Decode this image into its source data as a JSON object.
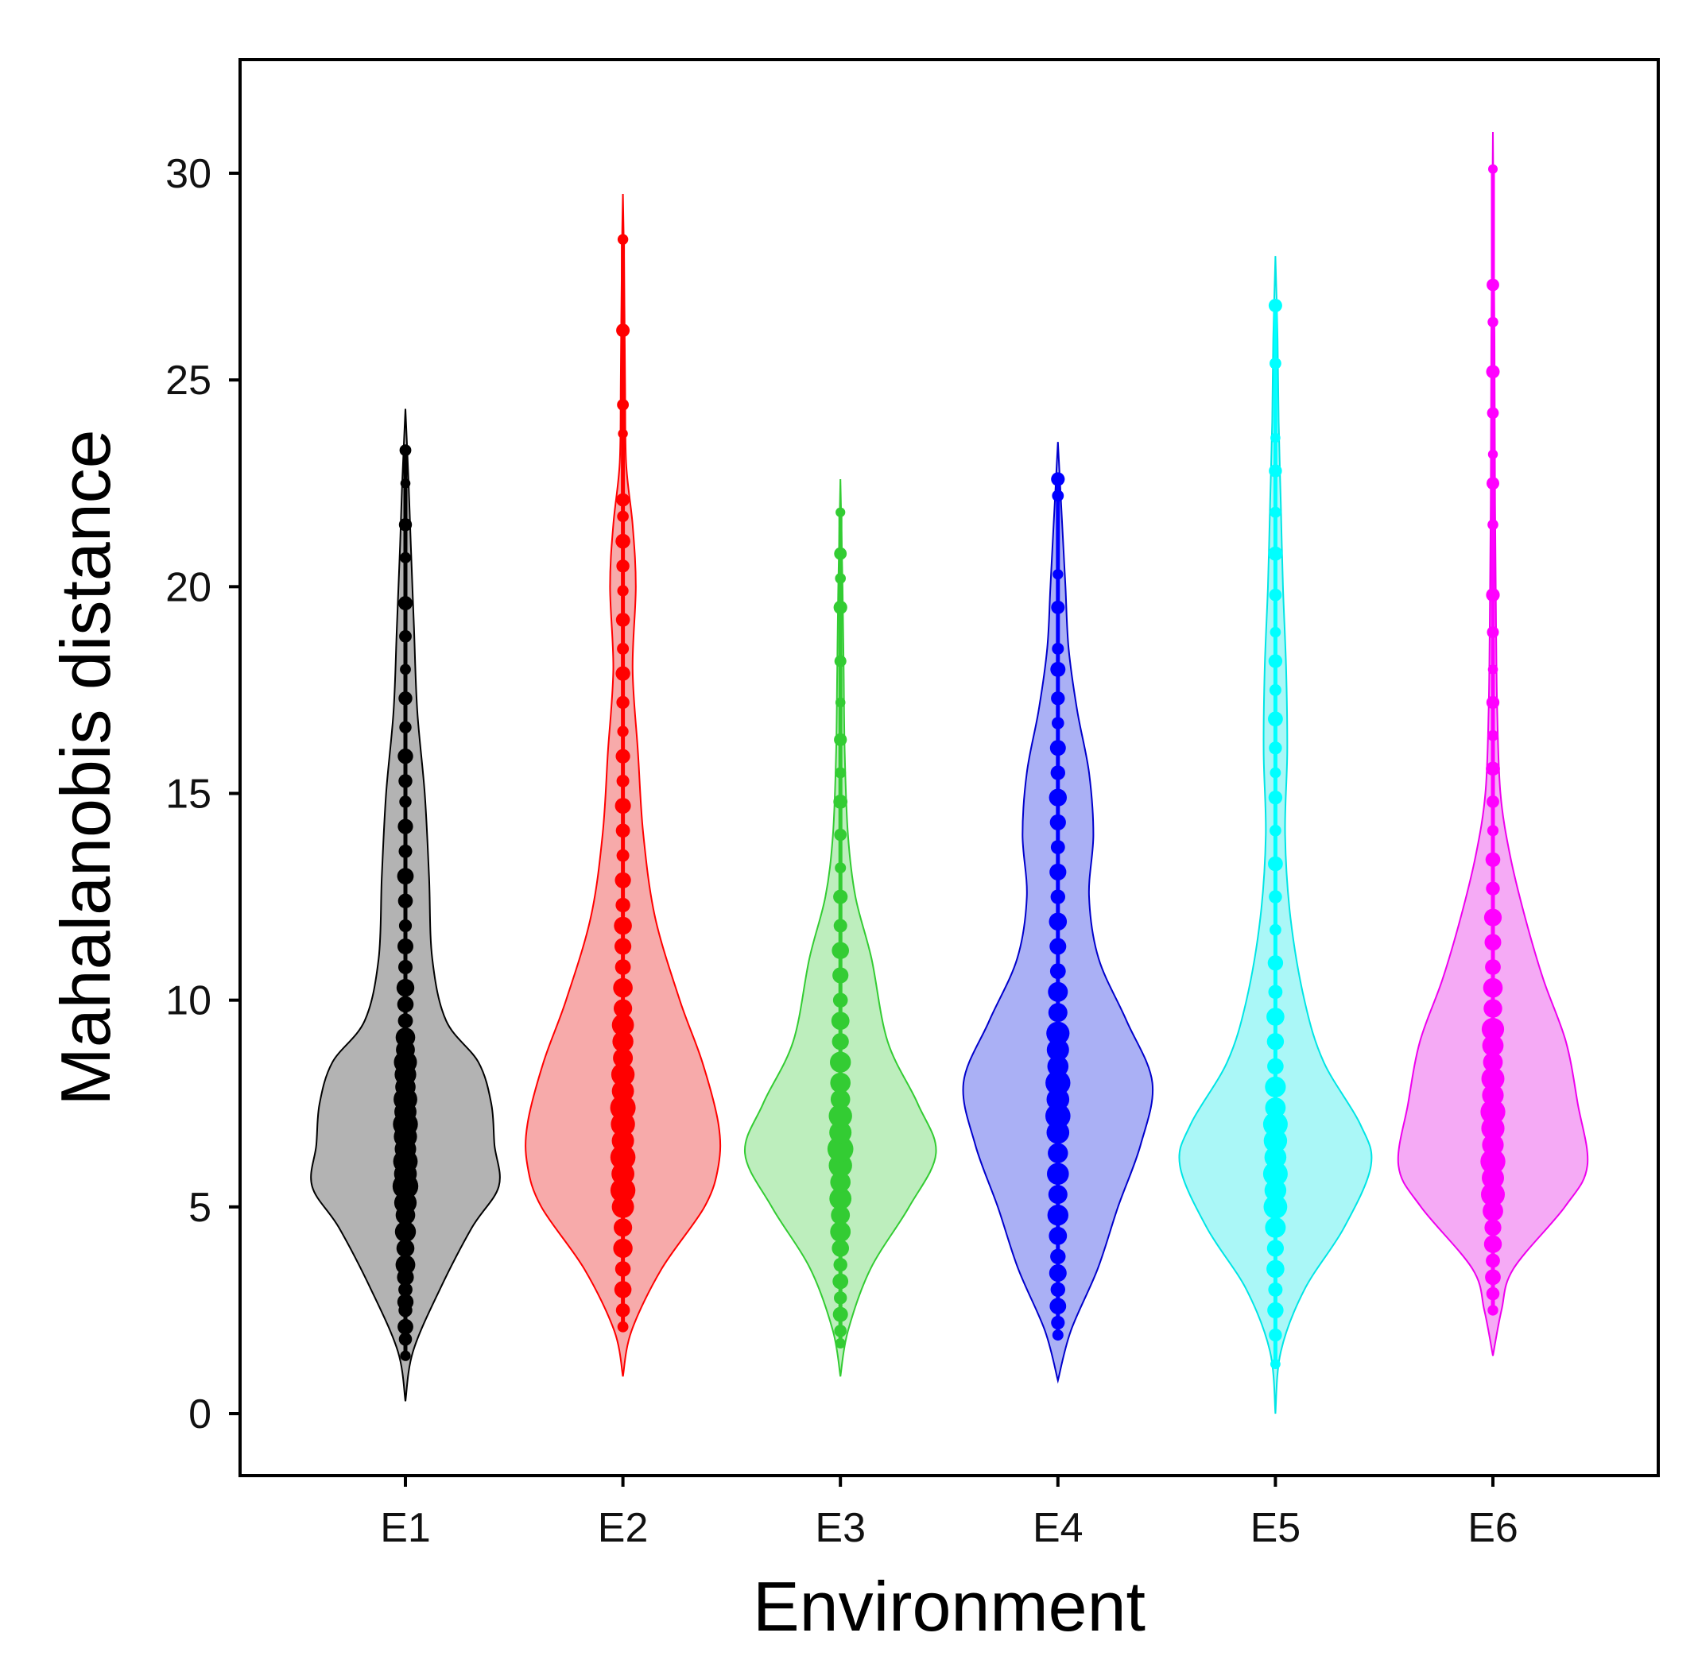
{
  "chart_data": {
    "type": "violin",
    "title": "",
    "xlabel": "Environment",
    "ylabel": "Mahalanobis distance",
    "ylim": [
      -1.5,
      33.0
    ],
    "yticks": [
      0,
      5,
      10,
      15,
      20,
      25,
      30
    ],
    "grid": false,
    "legend": "none",
    "categories": [
      "E1",
      "E2",
      "E3",
      "E4",
      "E5",
      "E6"
    ],
    "series": [
      {
        "name": "E1",
        "fill": "#b3b3b3",
        "stroke": "#000000",
        "point_color": "#000000",
        "range": [
          0.3,
          24.3
        ],
        "median": 8.5,
        "density": [
          [
            0.3,
            0.0
          ],
          [
            1.5,
            0.07
          ],
          [
            3.0,
            0.32
          ],
          [
            4.5,
            0.62
          ],
          [
            5.5,
            0.87
          ],
          [
            6.5,
            0.83
          ],
          [
            7.5,
            0.8
          ],
          [
            8.5,
            0.68
          ],
          [
            9.5,
            0.38
          ],
          [
            11.0,
            0.25
          ],
          [
            13.0,
            0.22
          ],
          [
            15.0,
            0.18
          ],
          [
            17.0,
            0.11
          ],
          [
            19.0,
            0.08
          ],
          [
            21.0,
            0.05
          ],
          [
            22.5,
            0.03
          ],
          [
            24.3,
            0.0
          ]
        ],
        "points": [
          1.4,
          1.8,
          2.1,
          2.5,
          2.7,
          3.0,
          3.3,
          3.6,
          4.0,
          4.4,
          4.8,
          5.1,
          5.5,
          5.8,
          6.1,
          6.4,
          6.7,
          7.0,
          7.3,
          7.6,
          7.9,
          8.2,
          8.5,
          8.8,
          9.1,
          9.5,
          9.9,
          10.3,
          10.8,
          11.3,
          11.8,
          12.4,
          13.0,
          13.6,
          14.2,
          14.8,
          15.3,
          15.9,
          16.6,
          17.3,
          18.0,
          18.8,
          19.6,
          20.7,
          21.5,
          22.5,
          23.3
        ]
      },
      {
        "name": "E2",
        "fill": "#f7aaaa",
        "stroke": "#ff0000",
        "point_color": "#ff0000",
        "range": [
          0.9,
          29.5
        ],
        "median": 8.2,
        "density": [
          [
            0.9,
            0.0
          ],
          [
            2.0,
            0.08
          ],
          [
            3.5,
            0.36
          ],
          [
            5.0,
            0.76
          ],
          [
            6.0,
            0.89
          ],
          [
            7.0,
            0.89
          ],
          [
            8.5,
            0.74
          ],
          [
            10.0,
            0.53
          ],
          [
            12.0,
            0.3
          ],
          [
            14.0,
            0.19
          ],
          [
            16.0,
            0.14
          ],
          [
            18.0,
            0.09
          ],
          [
            20.0,
            0.12
          ],
          [
            21.5,
            0.09
          ],
          [
            23.0,
            0.03
          ],
          [
            25.0,
            0.02
          ],
          [
            28.0,
            0.01
          ],
          [
            29.5,
            0.0
          ]
        ],
        "points": [
          2.1,
          2.5,
          3.0,
          3.5,
          4.0,
          4.5,
          5.0,
          5.4,
          5.8,
          6.2,
          6.6,
          7.0,
          7.4,
          7.8,
          8.2,
          8.6,
          9.0,
          9.4,
          9.8,
          10.3,
          10.8,
          11.3,
          11.8,
          12.3,
          12.9,
          13.5,
          14.1,
          14.7,
          15.3,
          15.9,
          16.5,
          17.2,
          17.9,
          18.5,
          19.2,
          19.9,
          20.5,
          21.1,
          21.7,
          22.1,
          23.7,
          24.4,
          26.2,
          28.4
        ]
      },
      {
        "name": "E3",
        "fill": "#bdeebd",
        "stroke": "#33cc33",
        "point_color": "#33cc33",
        "range": [
          0.9,
          22.6
        ],
        "median": 6.5,
        "density": [
          [
            0.9,
            0.0
          ],
          [
            2.0,
            0.07
          ],
          [
            3.5,
            0.28
          ],
          [
            5.0,
            0.64
          ],
          [
            6.3,
            0.89
          ],
          [
            7.5,
            0.72
          ],
          [
            9.0,
            0.44
          ],
          [
            11.0,
            0.29
          ],
          [
            12.5,
            0.14
          ],
          [
            14.0,
            0.07
          ],
          [
            16.0,
            0.04
          ],
          [
            18.0,
            0.03
          ],
          [
            20.0,
            0.02
          ],
          [
            22.6,
            0.0
          ]
        ],
        "points": [
          1.7,
          2.0,
          2.4,
          2.8,
          3.2,
          3.6,
          4.0,
          4.4,
          4.8,
          5.2,
          5.6,
          6.0,
          6.4,
          6.8,
          7.2,
          7.6,
          8.0,
          8.5,
          9.0,
          9.5,
          10.0,
          10.6,
          11.2,
          11.8,
          12.5,
          13.2,
          14.0,
          14.8,
          15.5,
          16.3,
          17.2,
          18.2,
          19.5,
          20.2,
          20.8,
          21.8
        ]
      },
      {
        "name": "E4",
        "fill": "#aab0f5",
        "stroke": "#0000cc",
        "point_color": "#0000ff",
        "range": [
          0.8,
          23.5
        ],
        "median": 8.2,
        "density": [
          [
            0.8,
            0.0
          ],
          [
            2.0,
            0.12
          ],
          [
            3.5,
            0.37
          ],
          [
            5.0,
            0.56
          ],
          [
            6.5,
            0.77
          ],
          [
            8.0,
            0.88
          ],
          [
            9.5,
            0.64
          ],
          [
            11.0,
            0.38
          ],
          [
            12.5,
            0.29
          ],
          [
            14.0,
            0.33
          ],
          [
            15.5,
            0.29
          ],
          [
            17.0,
            0.18
          ],
          [
            18.5,
            0.1
          ],
          [
            20.0,
            0.07
          ],
          [
            21.5,
            0.04
          ],
          [
            23.5,
            0.0
          ]
        ],
        "points": [
          1.9,
          2.2,
          2.6,
          3.0,
          3.4,
          3.8,
          4.3,
          4.8,
          5.3,
          5.8,
          6.3,
          6.8,
          7.2,
          7.6,
          8.0,
          8.4,
          8.8,
          9.2,
          9.7,
          10.2,
          10.7,
          11.3,
          11.9,
          12.5,
          13.1,
          13.7,
          14.3,
          14.9,
          15.5,
          16.1,
          16.7,
          17.3,
          18.0,
          18.5,
          19.5,
          20.3,
          22.2,
          22.6
        ]
      },
      {
        "name": "E5",
        "fill": "#aaf7f7",
        "stroke": "#00e5e5",
        "point_color": "#00ffff",
        "range": [
          0.0,
          28.0
        ],
        "median": 6.0,
        "density": [
          [
            0.0,
            0.0
          ],
          [
            1.5,
            0.05
          ],
          [
            3.0,
            0.27
          ],
          [
            4.5,
            0.64
          ],
          [
            6.0,
            0.89
          ],
          [
            7.0,
            0.79
          ],
          [
            8.5,
            0.45
          ],
          [
            10.0,
            0.27
          ],
          [
            12.0,
            0.14
          ],
          [
            14.0,
            0.09
          ],
          [
            16.0,
            0.11
          ],
          [
            18.0,
            0.1
          ],
          [
            20.0,
            0.07
          ],
          [
            22.0,
            0.05
          ],
          [
            24.0,
            0.03
          ],
          [
            26.0,
            0.02
          ],
          [
            28.0,
            0.0
          ]
        ],
        "points": [
          1.2,
          1.9,
          2.5,
          3.0,
          3.5,
          4.0,
          4.5,
          5.0,
          5.4,
          5.8,
          6.2,
          6.6,
          7.0,
          7.4,
          7.9,
          8.4,
          9.0,
          9.6,
          10.2,
          10.9,
          11.7,
          12.5,
          13.3,
          14.1,
          14.9,
          15.5,
          16.1,
          16.8,
          17.5,
          18.2,
          18.9,
          19.8,
          20.8,
          21.8,
          22.8,
          23.6,
          25.4,
          26.8
        ]
      },
      {
        "name": "E6",
        "fill": "#f5aaf5",
        "stroke": "#ee00ee",
        "point_color": "#ff00ff",
        "range": [
          1.4,
          31.0
        ],
        "median": 7.0,
        "density": [
          [
            1.4,
            0.0
          ],
          [
            2.5,
            0.08
          ],
          [
            3.5,
            0.19
          ],
          [
            5.0,
            0.67
          ],
          [
            6.0,
            0.88
          ],
          [
            7.5,
            0.79
          ],
          [
            9.0,
            0.68
          ],
          [
            10.5,
            0.47
          ],
          [
            12.0,
            0.3
          ],
          [
            13.5,
            0.16
          ],
          [
            15.0,
            0.07
          ],
          [
            17.0,
            0.04
          ],
          [
            19.0,
            0.03
          ],
          [
            22.0,
            0.02
          ],
          [
            26.0,
            0.015
          ],
          [
            31.0,
            0.0
          ]
        ],
        "points": [
          2.5,
          2.9,
          3.3,
          3.7,
          4.1,
          4.5,
          4.9,
          5.3,
          5.7,
          6.1,
          6.5,
          6.9,
          7.3,
          7.7,
          8.1,
          8.5,
          8.9,
          9.3,
          9.8,
          10.3,
          10.8,
          11.4,
          12.0,
          12.7,
          13.4,
          14.1,
          14.8,
          15.6,
          16.4,
          17.2,
          18.0,
          18.9,
          19.8,
          21.5,
          22.5,
          23.2,
          24.2,
          25.2,
          26.4,
          27.3,
          30.1
        ]
      }
    ]
  }
}
